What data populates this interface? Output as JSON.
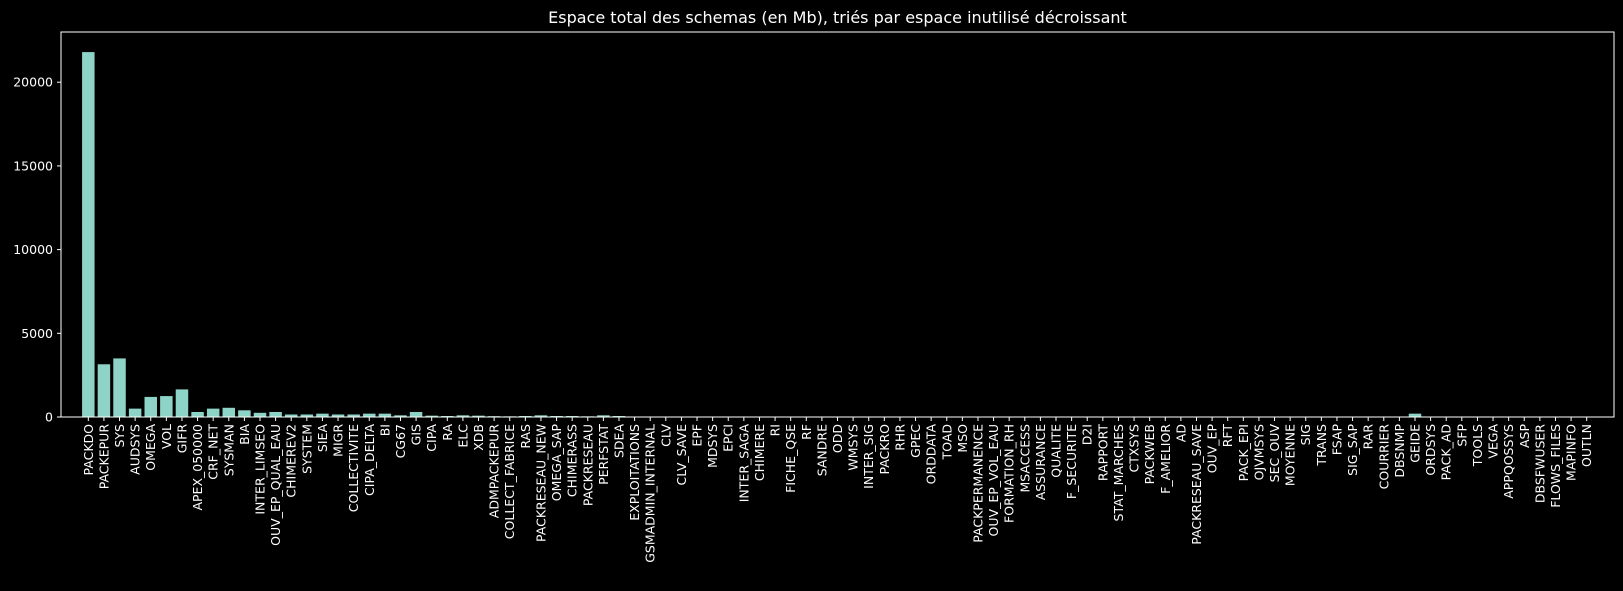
{
  "chart_data": {
    "type": "bar",
    "title": "Espace total des schemas (en Mb), triés par espace inutilisé décroissant",
    "xlabel": "",
    "ylabel": "",
    "ylim": [
      0,
      23000
    ],
    "yticks": [
      0,
      5000,
      10000,
      15000,
      20000
    ],
    "grid": false,
    "bar_color": "#8dd3c7",
    "background": "#000000",
    "foreground": "#ffffff",
    "categories": [
      "PACKDO",
      "PACKEPUR",
      "SYS",
      "AUDSYS",
      "OMEGA",
      "VOL",
      "GIFR",
      "APEX_050000",
      "CRF_NET",
      "SYSMAN",
      "BIA",
      "INTER_LIMSEO",
      "OUV_EP_QUAL_EAU",
      "CHIMEREV2",
      "SYSTEM",
      "SIEA",
      "MIGR",
      "COLLECTIVITE",
      "CIPA_DELTA",
      "BI",
      "CG67",
      "GIS",
      "CIPA",
      "RA",
      "ELC",
      "XDB",
      "ADMPACKEPUR",
      "COLLECT_FABRICE",
      "RAS",
      "PACKRESEAU_NEW",
      "OMEGA_SAP",
      "CHIMERASS",
      "PACKRESEAU",
      "PERFSTAT",
      "SDEA",
      "EXPLOITATIONS",
      "GSMADMIN_INTERNAL",
      "CLV",
      "CLV_SAVE",
      "EPF",
      "MDSYS",
      "EPCI",
      "INTER_SAGA",
      "CHIMERE",
      "RI",
      "FICHE_QSE",
      "RF",
      "SANDRE",
      "ODD",
      "WMSYS",
      "INTER_SIG",
      "PACKRO",
      "RHR",
      "GPEC",
      "ORDDATA",
      "TOAD",
      "MSO",
      "PACKPERMANENCE",
      "OUV_EP_VOL_EAU",
      "FORMATION_RH",
      "MSACCESS",
      "ASSURANCE",
      "QUALITE",
      "F_SECURITE",
      "D2I",
      "RAPPORT",
      "STAT_MARCHES",
      "CTXSYS",
      "PACKWEB",
      "F_AMELIOR",
      "AD",
      "PACKRESEAU_SAVE",
      "OUV_EP",
      "RFT",
      "PACK_EPI",
      "OJVMSYS",
      "SEC_OUV",
      "MOYENNE",
      "SIG",
      "TRANS",
      "FSAP",
      "SIG_SAP",
      "RAR",
      "COURRIER",
      "DBSNMP",
      "GEIDE",
      "ORDSYS",
      "PACK_AD",
      "SFP",
      "TOOLS",
      "VEGA",
      "APPQOSSYS",
      "ASP",
      "DBSFWUSER",
      "FLOWS_FILES",
      "MAPINFO",
      "OUTLN"
    ],
    "values": [
      21800,
      3150,
      3500,
      500,
      1200,
      1250,
      1650,
      300,
      500,
      550,
      400,
      250,
      300,
      150,
      150,
      200,
      150,
      150,
      200,
      200,
      100,
      300,
      80,
      60,
      100,
      80,
      50,
      40,
      60,
      100,
      60,
      60,
      40,
      100,
      60,
      0,
      0,
      0,
      0,
      0,
      0,
      0,
      0,
      0,
      0,
      0,
      0,
      0,
      0,
      0,
      0,
      0,
      0,
      0,
      0,
      0,
      0,
      0,
      0,
      0,
      0,
      0,
      0,
      0,
      0,
      0,
      0,
      0,
      0,
      0,
      0,
      0,
      0,
      0,
      0,
      0,
      0,
      0,
      0,
      0,
      0,
      0,
      0,
      0,
      0,
      200,
      0,
      0,
      0,
      0,
      0,
      0,
      0,
      0,
      0,
      0,
      0
    ]
  }
}
